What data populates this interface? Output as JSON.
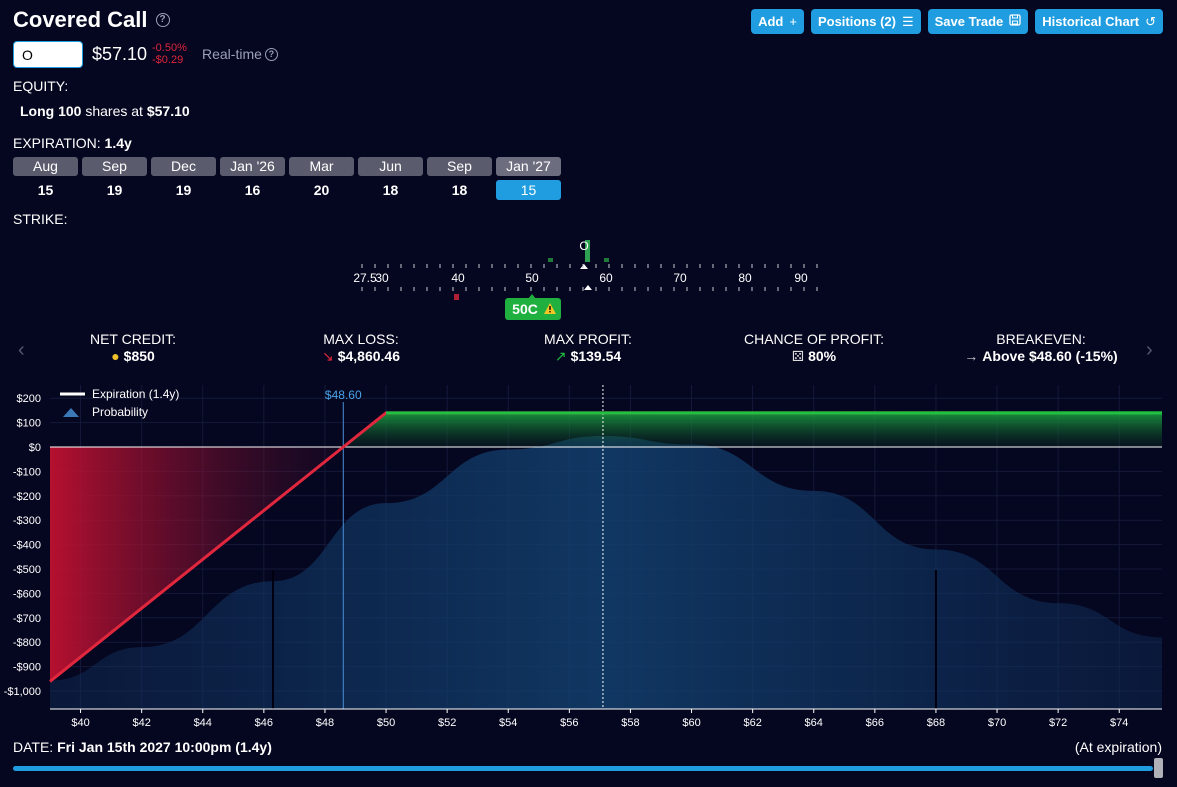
{
  "header": {
    "title": "Covered Call",
    "buttons": [
      {
        "label": "Add",
        "icon": "plus-icon",
        "glyph": "+"
      },
      {
        "label": "Positions (2)",
        "icon": "list-icon",
        "glyph": "☰"
      },
      {
        "label": "Save Trade",
        "icon": "save-icon",
        "glyph": "🖫"
      },
      {
        "label": "Historical Chart",
        "icon": "history-icon",
        "glyph": "↺"
      }
    ]
  },
  "quote": {
    "symbol": "O",
    "price": "$57.10",
    "change_pct": "-0.50%",
    "change_abs": "-$0.29",
    "mode": "Real-time"
  },
  "equity": {
    "label": "EQUITY:",
    "qty": "Long 100",
    "mid": " shares at ",
    "price": "$57.10"
  },
  "expiration": {
    "label": "EXPIRATION:",
    "value": "1.4y",
    "dates": [
      {
        "month": "Aug",
        "day": "15"
      },
      {
        "month": "Sep",
        "day": "19"
      },
      {
        "month": "Dec",
        "day": "19"
      },
      {
        "month": "Jan '26",
        "day": "16"
      },
      {
        "month": "Mar",
        "day": "20"
      },
      {
        "month": "Jun",
        "day": "18"
      },
      {
        "month": "Sep",
        "day": "18"
      },
      {
        "month": "Jan '27",
        "day": "15"
      }
    ],
    "selected_index": 7
  },
  "strike": {
    "label": "STRIKE:",
    "ticker_marker": "O",
    "ticks": [
      "27.5",
      "30",
      "40",
      "50",
      "60",
      "70",
      "80",
      "90"
    ],
    "selected": "50C",
    "warning_icon": "warning-icon"
  },
  "stats": [
    {
      "label": "NET CREDIT:",
      "value": "$850",
      "icon": "coins-icon",
      "glyph": "●"
    },
    {
      "label": "MAX LOSS:",
      "value": "$4,860.46",
      "icon": "arrow-down-icon",
      "glyph": "↘"
    },
    {
      "label": "MAX PROFIT:",
      "value": "$139.54",
      "icon": "arrow-up-icon",
      "glyph": "↗"
    },
    {
      "label": "CHANCE OF PROFIT:",
      "value": "80%",
      "icon": "dice-icon",
      "glyph": "⚄"
    },
    {
      "label": "BREAKEVEN:",
      "value": "Above $48.60 (-15%)",
      "icon": "arrow-right-icon",
      "glyph": "→"
    }
  ],
  "chart_data": {
    "type": "line",
    "legend": [
      "Expiration (1.4y)",
      "Probability"
    ],
    "breakeven_label": "$48.60",
    "breakeven": 48.6,
    "current_price": 57.1,
    "xlim": [
      39,
      75.4
    ],
    "ylim": [
      -1000,
      200
    ],
    "x_ticks": [
      40,
      42,
      44,
      46,
      48,
      50,
      52,
      54,
      56,
      58,
      60,
      62,
      64,
      66,
      68,
      70,
      72,
      74
    ],
    "x_tick_labels": [
      "$40",
      "$42",
      "$44",
      "$46",
      "$48",
      "$50",
      "$52",
      "$54",
      "$56",
      "$58",
      "$60",
      "$62",
      "$64",
      "$66",
      "$68",
      "$70",
      "$72",
      "$74"
    ],
    "y_ticks": [
      200,
      100,
      0,
      -100,
      -200,
      -300,
      -400,
      -500,
      -600,
      -700,
      -800,
      -900,
      -1000
    ],
    "y_tick_labels": [
      "$200",
      "$100",
      "$0",
      "-$100",
      "-$200",
      "-$300",
      "-$400",
      "-$500",
      "-$600",
      "-$700",
      "-$800",
      "-$900",
      "-$1,000"
    ],
    "series": [
      {
        "name": "Expiration (1.4y)",
        "x": [
          39,
          48.6,
          50,
          75.4
        ],
        "y": [
          -961,
          0,
          140,
          140
        ]
      },
      {
        "name": "Probability",
        "x": [
          39,
          42,
          46.3,
          50,
          54,
          57.1,
          60,
          64,
          68,
          72,
          75.4
        ],
        "y": [
          -957,
          -820,
          -550,
          -230,
          -10,
          45,
          10,
          -180,
          -420,
          -640,
          -780
        ]
      }
    ],
    "sigma_band_x": [
      46.3,
      68
    ]
  },
  "footer": {
    "date_label": "DATE:",
    "date_value": "Fri Jan 15th 2027 10:00pm (1.4y)",
    "at_expiration": "(At expiration)"
  },
  "colors": {
    "accent": "#1f9de0",
    "profit": "#20c040",
    "loss": "#e0273d",
    "background": "#05061f"
  }
}
